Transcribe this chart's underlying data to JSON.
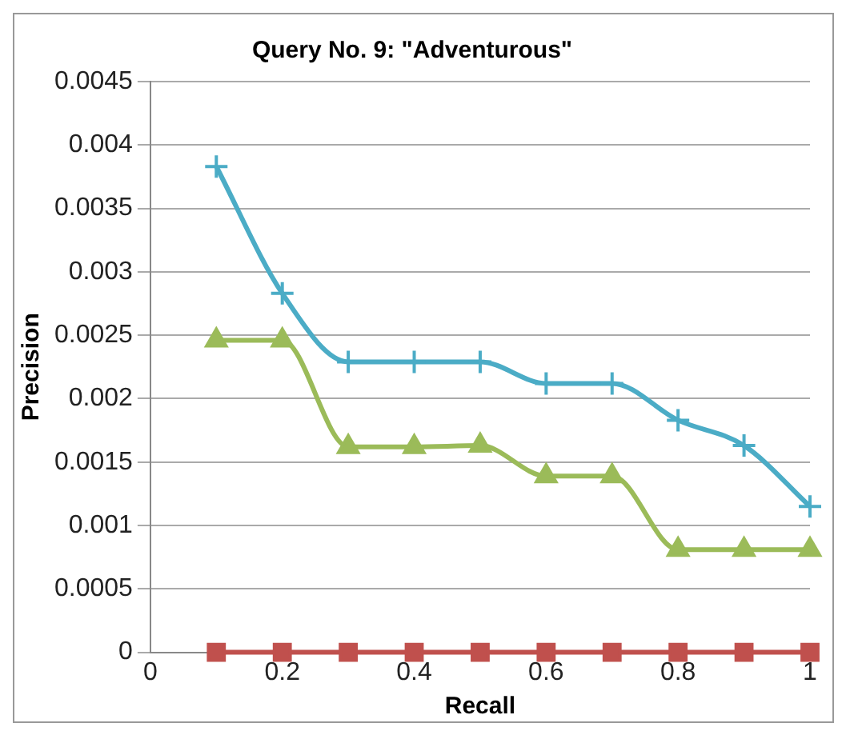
{
  "chart_data": {
    "type": "line",
    "title": "Query No. 9: \"Adventurous\"",
    "xlabel": "Recall",
    "ylabel": "Precision",
    "x": [
      0.1,
      0.2,
      0.3,
      0.4,
      0.5,
      0.6,
      0.7,
      0.8,
      0.9,
      1.0
    ],
    "series": [
      {
        "color": "#4bacc6",
        "marker": "cross",
        "values": [
          0.00383,
          0.00283,
          0.00229,
          0.00229,
          0.00229,
          0.00212,
          0.00212,
          0.00183,
          0.00163,
          0.00115
        ]
      },
      {
        "color": "#9bbb59",
        "marker": "triangle",
        "values": [
          0.00246,
          0.00246,
          0.00162,
          0.00162,
          0.00163,
          0.00139,
          0.00139,
          0.00081,
          0.00081,
          0.00081
        ]
      },
      {
        "color": "#c0504d",
        "marker": "square",
        "values": [
          0,
          0,
          0,
          0,
          0,
          0,
          0,
          0,
          0,
          0
        ]
      }
    ],
    "xlim": [
      0,
      1
    ],
    "xticks": [
      0,
      0.2,
      0.4,
      0.6,
      0.8,
      1
    ],
    "ylim": [
      0,
      0.0045
    ],
    "yticks": [
      0,
      0.0005,
      0.001,
      0.0015,
      0.002,
      0.0025,
      0.003,
      0.0035,
      0.004,
      0.0045
    ],
    "grid": "y",
    "legend": false
  }
}
